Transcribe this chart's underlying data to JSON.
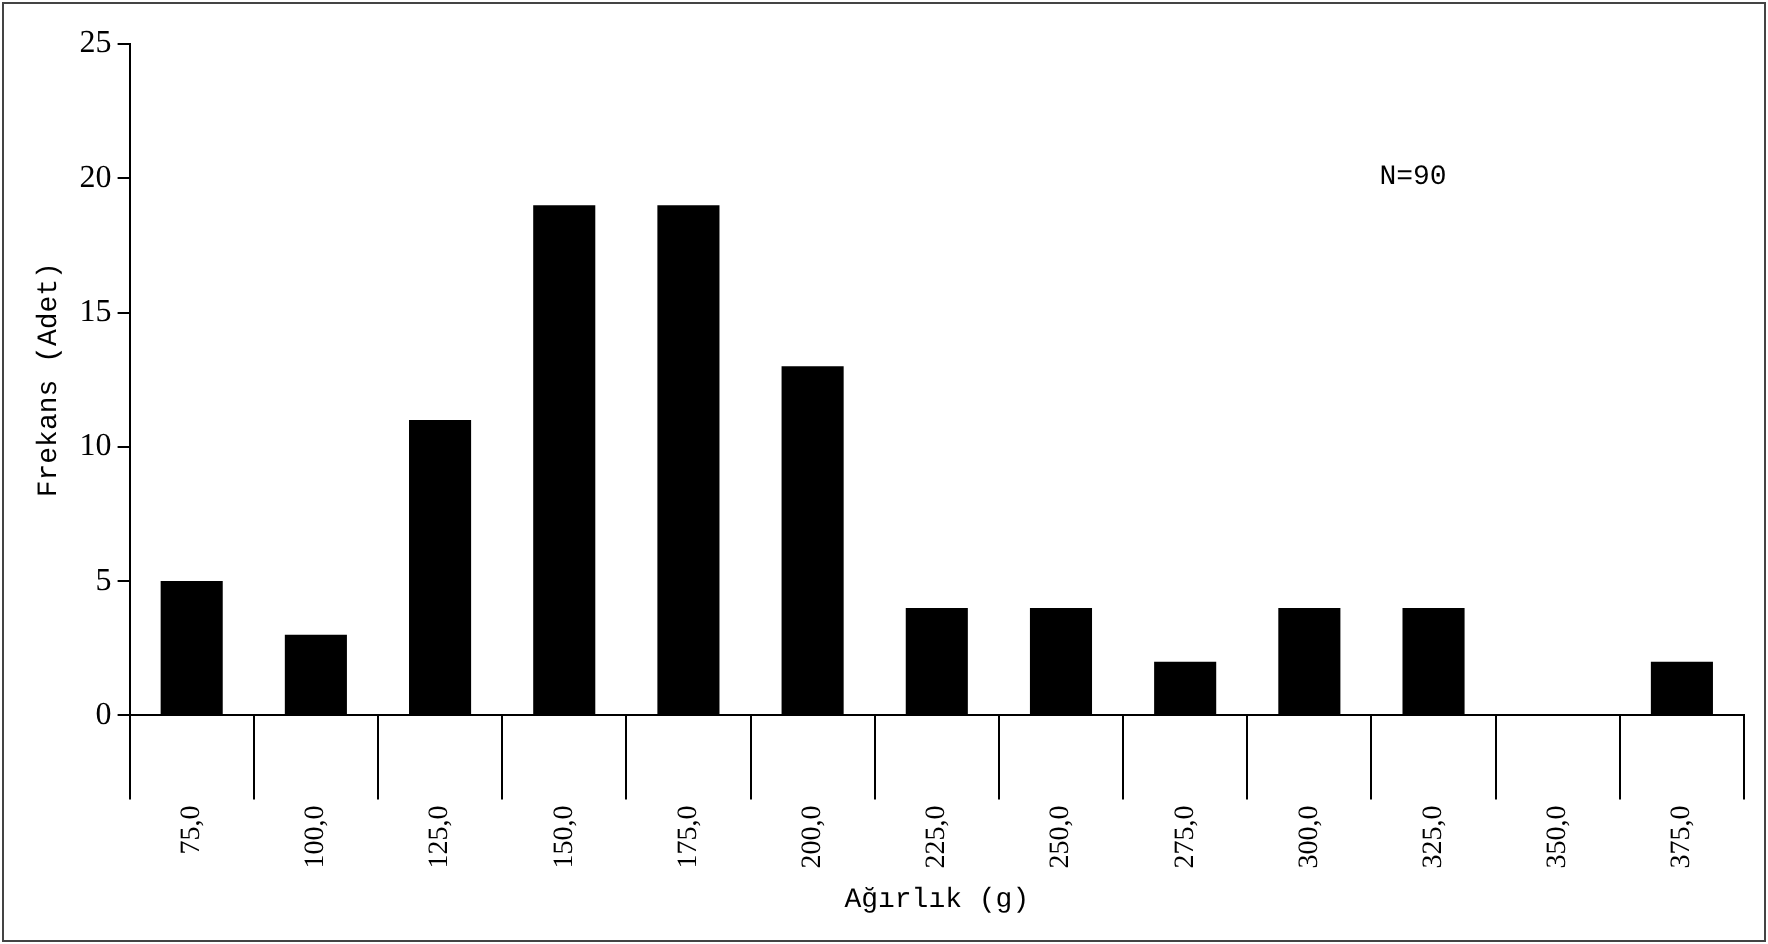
{
  "chart_data": {
    "type": "bar",
    "xlabel": "Ağırlık (g)",
    "ylabel": "Frekans (Adet)",
    "categories": [
      "75,0",
      "100,0",
      "125,0",
      "150,0",
      "175,0",
      "200,0",
      "225,0",
      "250,0",
      "275,0",
      "300,0",
      "325,0",
      "350,0",
      "375,0"
    ],
    "values": [
      5,
      3,
      11,
      19,
      19,
      13,
      4,
      4,
      2,
      4,
      4,
      0,
      2
    ],
    "color": "#000000",
    "ylim": [
      0,
      25
    ],
    "yticks": [
      0,
      5,
      10,
      15,
      20,
      25
    ],
    "grid": false,
    "legend": false,
    "annotations": [
      "N=90"
    ]
  }
}
